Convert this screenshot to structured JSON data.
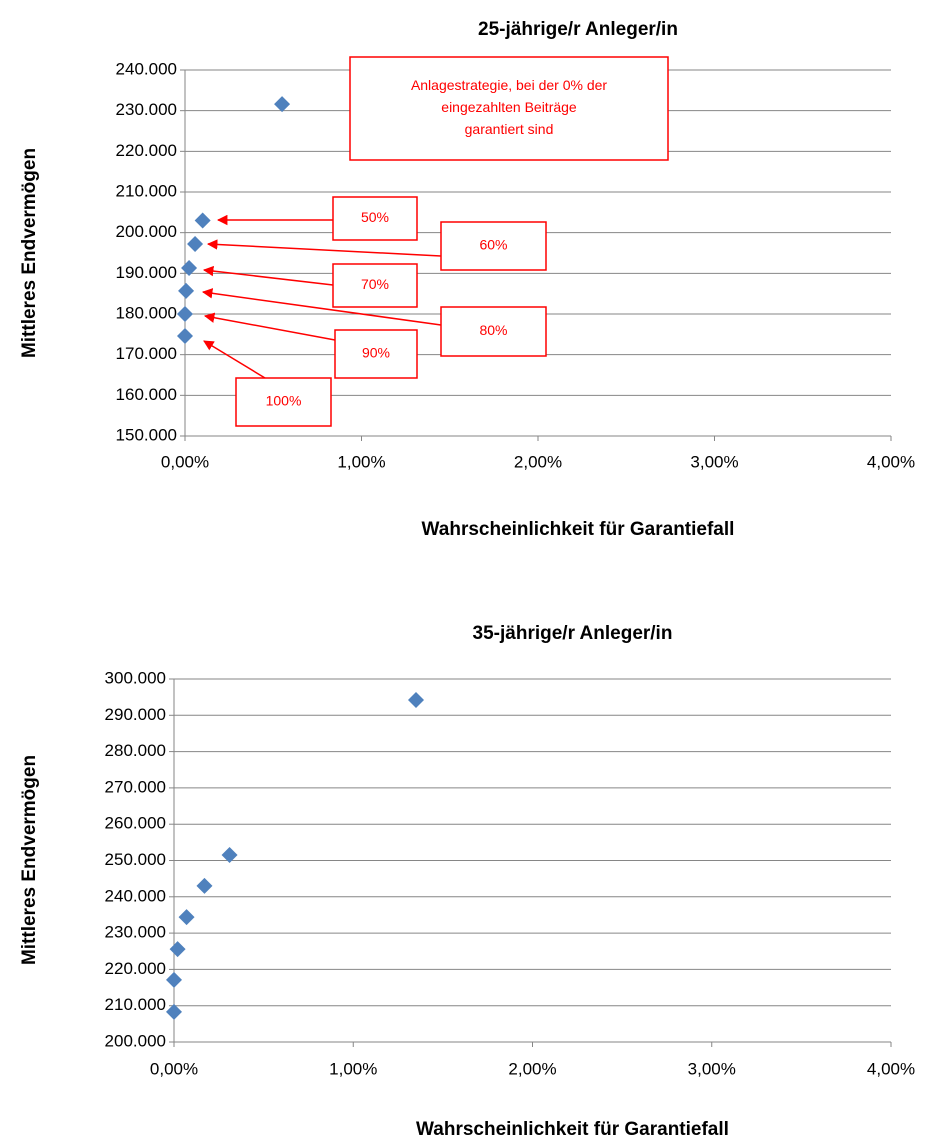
{
  "chart_data": [
    {
      "type": "scatter",
      "title": "25-jährige/r Anleger/in",
      "x_label": "Wahrscheinlichkeit für Garantiefall",
      "y_label": "Mittleres Endvermögen",
      "color": "#4f81bd",
      "grid": true,
      "x": [
        0.55,
        0.1,
        0.057,
        0.023,
        0.006,
        0,
        0
      ],
      "values": [
        231600,
        203000,
        197200,
        191300,
        185700,
        180000,
        174600
      ],
      "xlim": [
        0,
        4
      ],
      "xticks": [
        {
          "value": 0,
          "label": "0,00%"
        },
        {
          "value": 1,
          "label": "1,00%"
        },
        {
          "value": 2,
          "label": "2,00%"
        },
        {
          "value": 3,
          "label": "3,00%"
        },
        {
          "value": 4,
          "label": "4,00%"
        }
      ],
      "ylim": [
        150000,
        240000
      ],
      "yticks": [
        {
          "value": 150000,
          "label": "150.000"
        },
        {
          "value": 160000,
          "label": "160.000"
        },
        {
          "value": 170000,
          "label": "170.000"
        },
        {
          "value": 180000,
          "label": "180.000"
        },
        {
          "value": 190000,
          "label": "190.000"
        },
        {
          "value": 200000,
          "label": "200.000"
        },
        {
          "value": 210000,
          "label": "210.000"
        },
        {
          "value": 220000,
          "label": "220.000"
        },
        {
          "value": 230000,
          "label": "230.000"
        },
        {
          "value": 240000,
          "label": "240.000"
        }
      ],
      "annotations": [
        {
          "text": [
            "Anlagestrategie, bei der 0% der",
            "eingezahlten Beiträge",
            "garantiert sind"
          ]
        },
        {
          "text": [
            "50%"
          ]
        },
        {
          "text": [
            "60%"
          ]
        },
        {
          "text": [
            "70%"
          ]
        },
        {
          "text": [
            "80%"
          ]
        },
        {
          "text": [
            "90%"
          ]
        },
        {
          "text": [
            "100%"
          ]
        }
      ],
      "annotation_color": "#ff0000"
    },
    {
      "type": "scatter",
      "title": "35-jährige/r Anleger/in",
      "x_label": "Wahrscheinlichkeit für Garantiefall",
      "y_label": "Mittleres Endvermögen",
      "color": "#4f81bd",
      "grid": true,
      "x": [
        1.35,
        0.31,
        0.17,
        0.07,
        0.02,
        0,
        0
      ],
      "values": [
        294200,
        251500,
        243000,
        234400,
        225600,
        217100,
        208300
      ],
      "xlim": [
        0,
        4
      ],
      "xticks": [
        {
          "value": 0,
          "label": "0,00%"
        },
        {
          "value": 1,
          "label": "1,00%"
        },
        {
          "value": 2,
          "label": "2,00%"
        },
        {
          "value": 3,
          "label": "3,00%"
        },
        {
          "value": 4,
          "label": "4,00%"
        }
      ],
      "ylim": [
        200000,
        300000
      ],
      "yticks": [
        {
          "value": 200000,
          "label": "200.000"
        },
        {
          "value": 210000,
          "label": "210.000"
        },
        {
          "value": 220000,
          "label": "220.000"
        },
        {
          "value": 230000,
          "label": "230.000"
        },
        {
          "value": 240000,
          "label": "240.000"
        },
        {
          "value": 250000,
          "label": "250.000"
        },
        {
          "value": 260000,
          "label": "260.000"
        },
        {
          "value": 270000,
          "label": "270.000"
        },
        {
          "value": 280000,
          "label": "280.000"
        },
        {
          "value": 290000,
          "label": "290.000"
        },
        {
          "value": 300000,
          "label": "300.000"
        }
      ]
    }
  ]
}
